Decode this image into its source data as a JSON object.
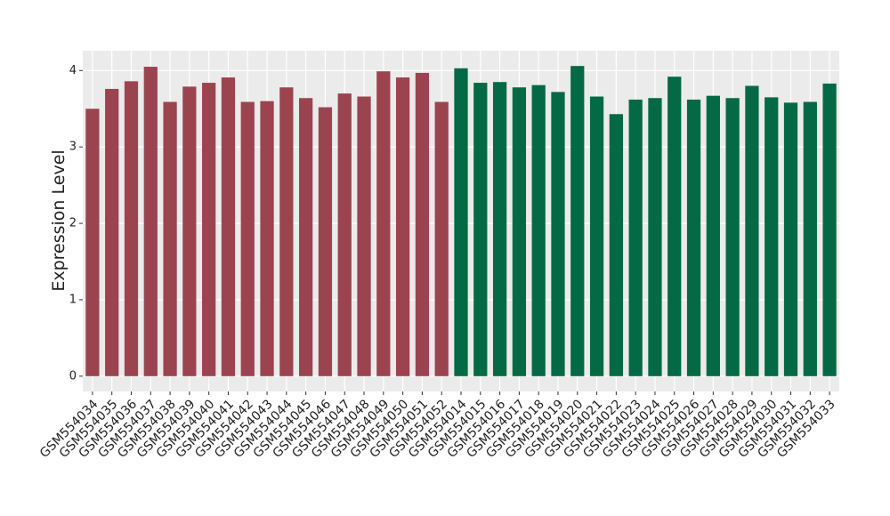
{
  "chart_data": {
    "type": "bar",
    "y_label": "Expression Level",
    "categories": [
      "GSM554034",
      "GSM554035",
      "GSM554036",
      "GSM554037",
      "GSM554038",
      "GSM554039",
      "GSM554040",
      "GSM554041",
      "GSM554042",
      "GSM554043",
      "GSM554044",
      "GSM554045",
      "GSM554046",
      "GSM554047",
      "GSM554048",
      "GSM554049",
      "GSM554050",
      "GSM554051",
      "GSM554052",
      "GSM554014",
      "GSM554015",
      "GSM554016",
      "GSM554017",
      "GSM554018",
      "GSM554019",
      "GSM554020",
      "GSM554021",
      "GSM554022",
      "GSM554023",
      "GSM554024",
      "GSM554025",
      "GSM554026",
      "GSM554027",
      "GSM554028",
      "GSM554029",
      "GSM554030",
      "GSM554031",
      "GSM554032",
      "GSM554033"
    ],
    "series": [
      {
        "color": "#9b4450",
        "values": [
          3.5,
          3.76,
          3.86,
          4.05,
          3.59,
          3.79,
          3.84,
          3.91,
          3.59,
          3.6,
          3.78,
          3.64,
          3.52,
          3.7,
          3.66,
          3.99,
          3.91,
          3.97,
          3.59,
          null,
          null,
          null,
          null,
          null,
          null,
          null,
          null,
          null,
          null,
          null,
          null,
          null,
          null,
          null,
          null,
          null,
          null,
          null,
          null
        ]
      },
      {
        "color": "#046a45",
        "values": [
          null,
          null,
          null,
          null,
          null,
          null,
          null,
          null,
          null,
          null,
          null,
          null,
          null,
          null,
          null,
          null,
          null,
          null,
          null,
          4.03,
          3.84,
          3.85,
          3.78,
          3.81,
          3.72,
          4.06,
          3.66,
          3.43,
          3.62,
          3.64,
          3.92,
          3.62,
          3.67,
          3.64,
          3.8,
          3.65,
          3.58,
          3.59,
          3.83
        ]
      }
    ],
    "ylim": [
      -0.2,
      4.26
    ],
    "yticks": [
      0,
      1,
      2,
      3,
      4
    ],
    "grid": true
  }
}
